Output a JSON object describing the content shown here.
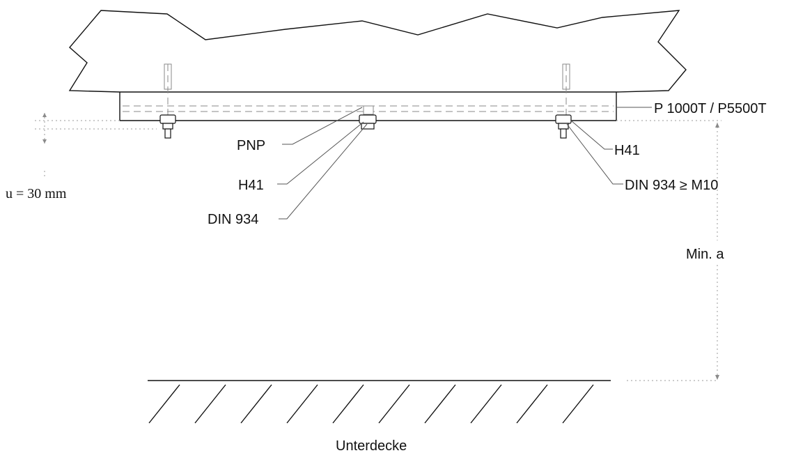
{
  "labels": {
    "profile": "P 1000T / P5500T",
    "pnp": "PNP",
    "h41_left": "H41",
    "din934_left": "DIN 934",
    "h41_right": "H41",
    "din934_right": "DIN 934 ≥ M10",
    "u_spacing": "u = 30 mm",
    "min_a": "Min. a",
    "unterdecke": "Unterdecke"
  }
}
